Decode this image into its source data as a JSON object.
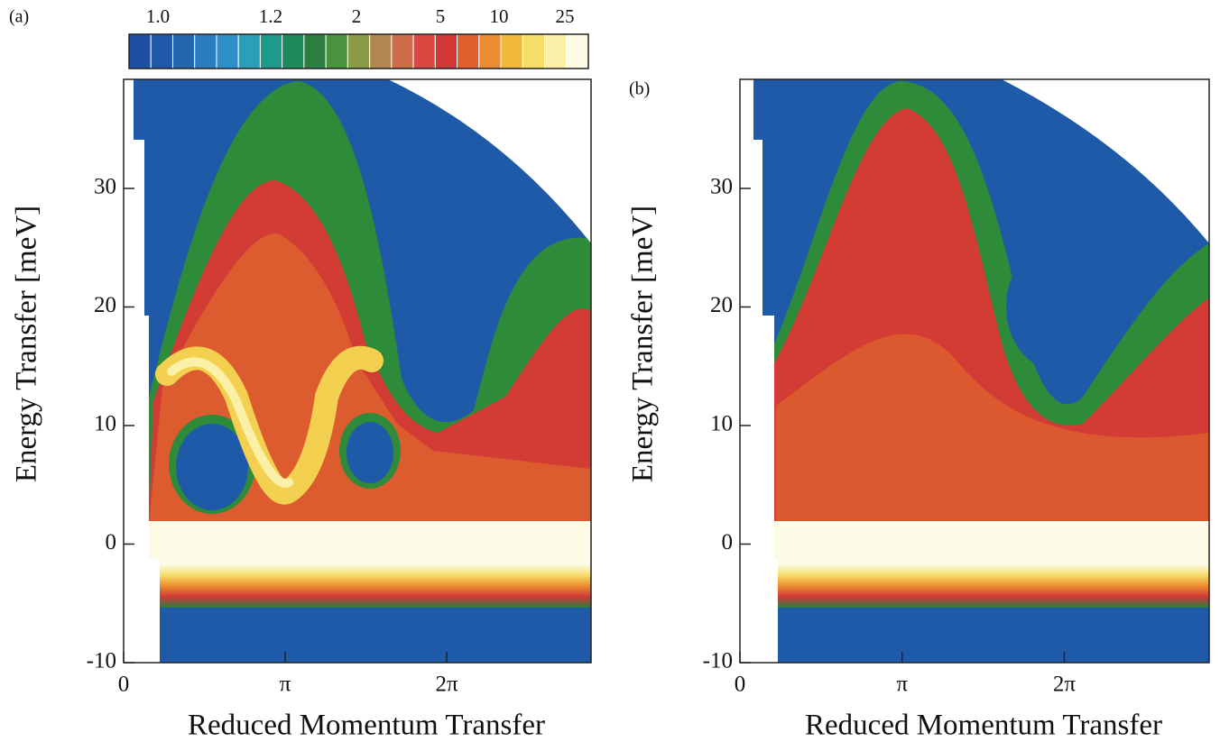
{
  "chart_data": [
    {
      "type": "contour",
      "panel_label": "(a)",
      "xlabel": "Reduced Momentum Transfer",
      "ylabel": "Energy Transfer [meV]",
      "xlim": [
        0,
        9.09
      ],
      "ylim": [
        -10,
        39.2
      ],
      "xticks": [
        0,
        {
          "value": 3.1416,
          "label": "π"
        },
        {
          "value": 6.2832,
          "label": "2π"
        }
      ],
      "yticks": [
        -10,
        0,
        10,
        20,
        30
      ],
      "colorbar": {
        "colors": [
          "#1f4fa0",
          "#2158a8",
          "#2466b0",
          "#2a7bc0",
          "#2f8fc8",
          "#2aa0b8",
          "#1e9a8a",
          "#1e8a5a",
          "#2a8040",
          "#4a9440",
          "#8a9a48",
          "#b08850",
          "#cc6c48",
          "#d84840",
          "#d03838",
          "#e06030",
          "#ec8c30",
          "#f2b838",
          "#f6dc68",
          "#faf0a8",
          "#fdfbe6"
        ],
        "ticks": [
          {
            "value": 1,
            "label": "1.0"
          },
          1.2,
          2,
          5,
          10,
          25
        ]
      }
    },
    {
      "type": "contour",
      "panel_label": "(b)",
      "xlabel": "Reduced Momentum Transfer",
      "ylabel": "Energy Transfer [meV]",
      "xlim": [
        0,
        9.09
      ],
      "ylim": [
        -10,
        39.2
      ],
      "xticks": [
        0,
        {
          "value": 3.1416,
          "label": "π"
        },
        {
          "value": 6.2832,
          "label": "2π"
        }
      ],
      "yticks": [
        -10,
        0,
        10,
        20,
        30
      ]
    }
  ]
}
